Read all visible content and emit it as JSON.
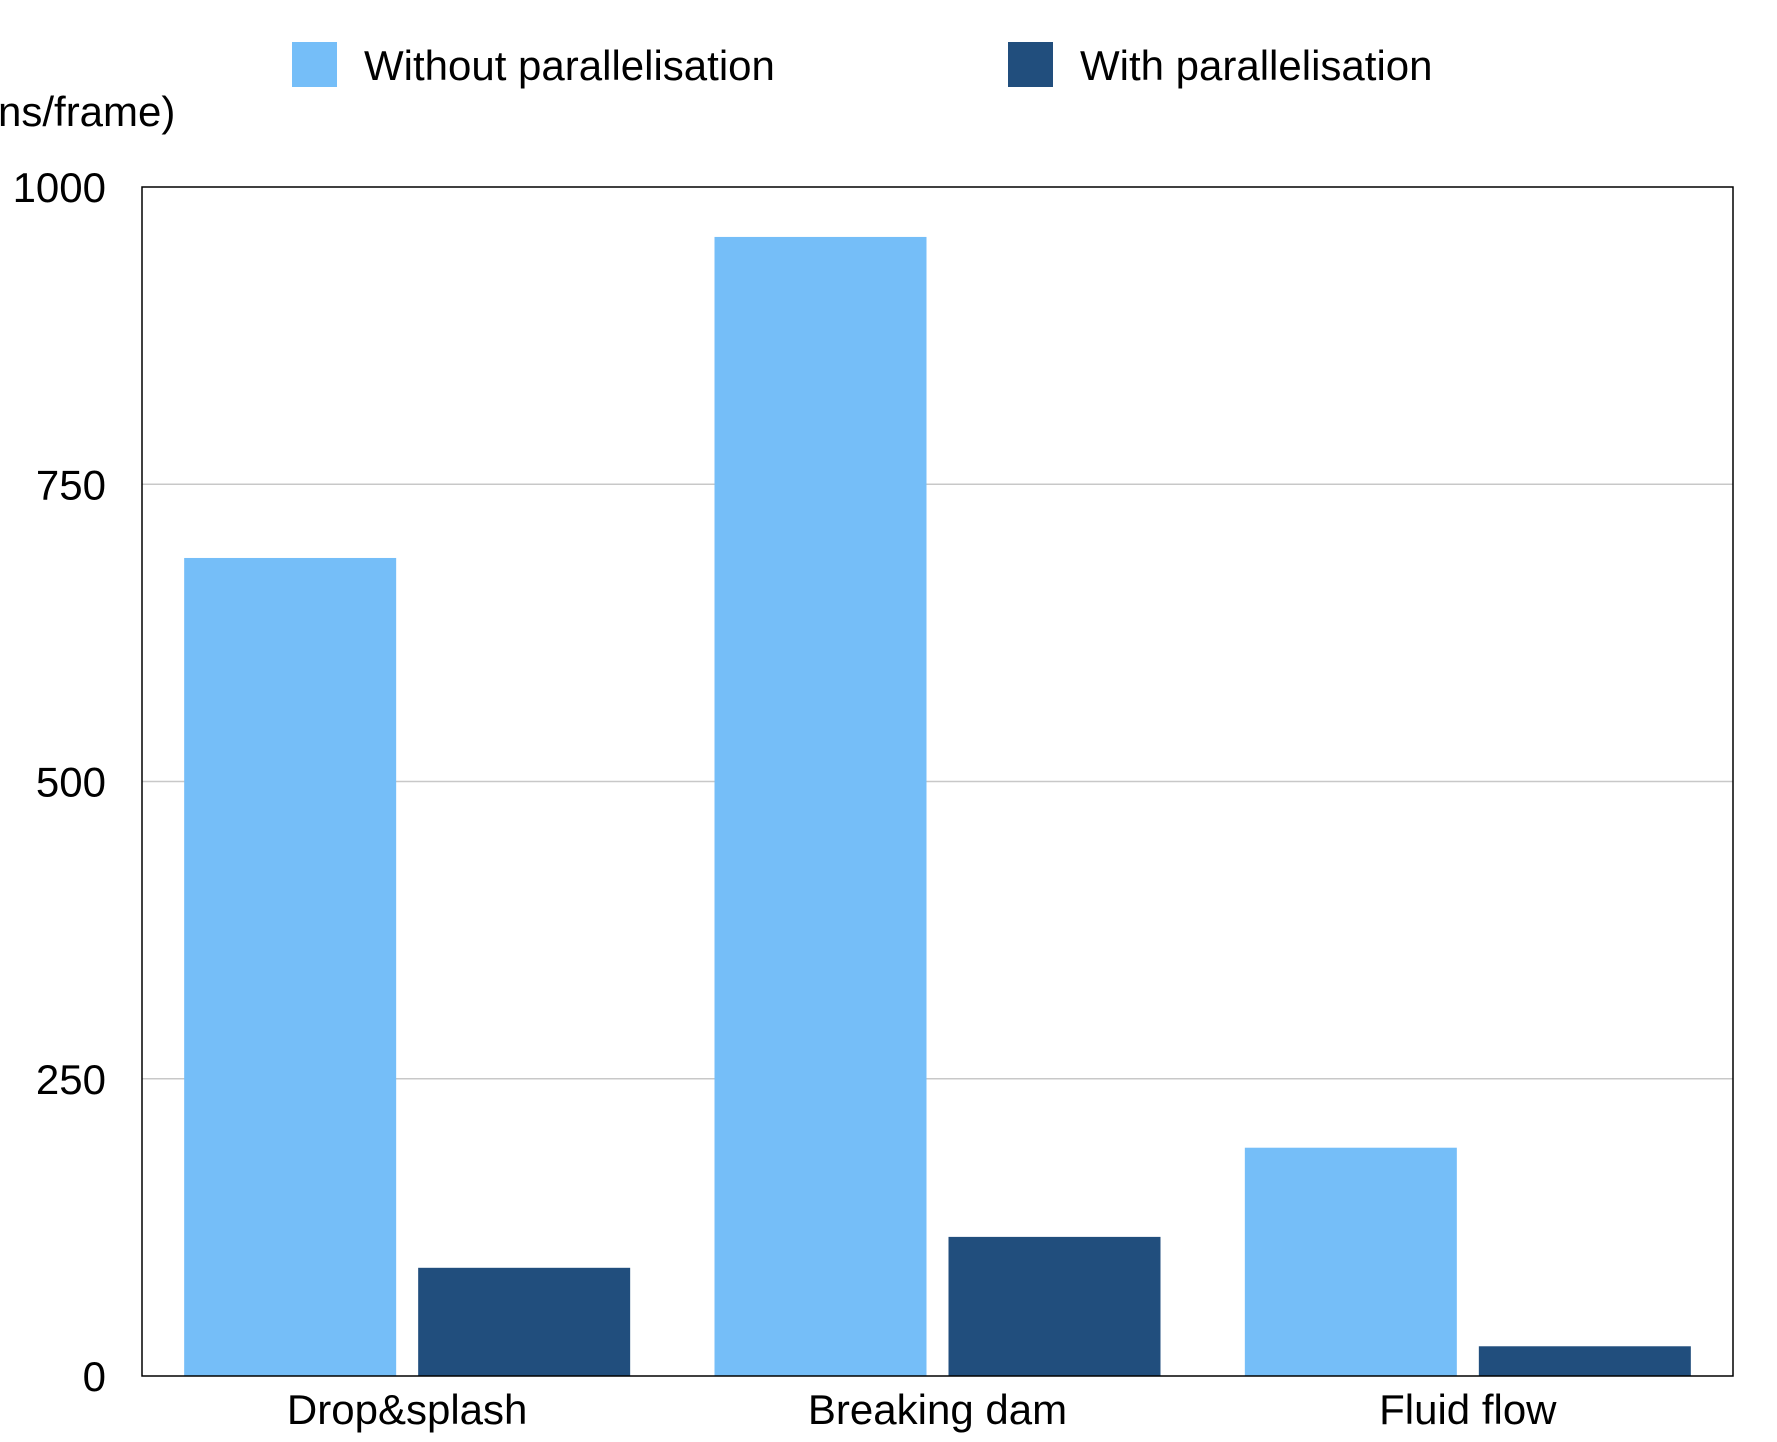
{
  "chart_data": {
    "type": "bar",
    "title": "",
    "xlabel": "",
    "ylabel": "ns/frame)",
    "categories": [
      "Drop&splash",
      "Breaking dam",
      "Fluid flow"
    ],
    "series": [
      {
        "name": "Without parallelisation",
        "values": [
          688,
          958,
          192
        ],
        "color": "#75BEF8"
      },
      {
        "name": "With parallelisation",
        "values": [
          91,
          117,
          25
        ],
        "color": "#214E7D"
      }
    ],
    "ylim": [
      0,
      1000
    ],
    "yticks": [
      0,
      250,
      500,
      750,
      1000
    ],
    "grid": true,
    "legend": "top"
  }
}
